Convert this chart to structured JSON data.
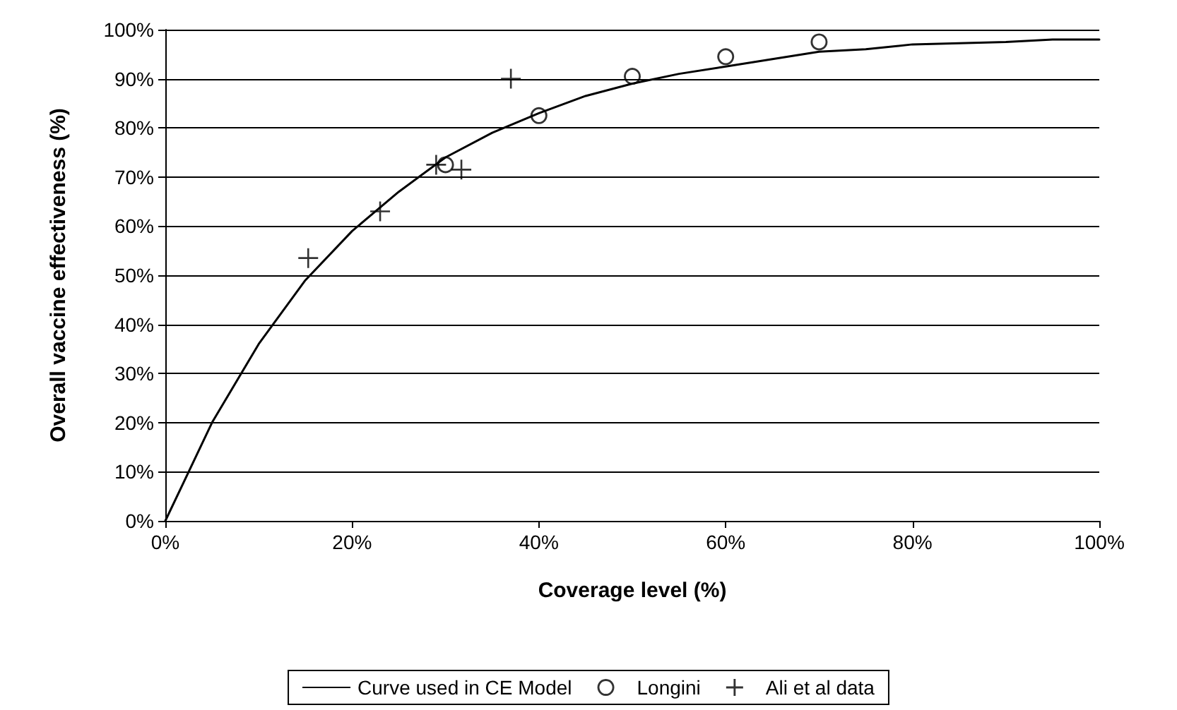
{
  "chart_data": {
    "type": "line",
    "xlabel": "Coverage level (%)",
    "ylabel": "Overall vaccine effectiveness (%)",
    "xlim": [
      0,
      100
    ],
    "xticks": [
      {
        "value": 0,
        "label": "0%"
      },
      {
        "value": 20,
        "label": "20%"
      },
      {
        "value": 40,
        "label": "40%"
      },
      {
        "value": 60,
        "label": "60%"
      },
      {
        "value": 80,
        "label": "80%"
      },
      {
        "value": 100,
        "label": "100%"
      }
    ],
    "ylim": [
      0,
      100
    ],
    "yticks": [
      {
        "value": 0,
        "label": "0%"
      },
      {
        "value": 10,
        "label": "10%"
      },
      {
        "value": 20,
        "label": "20%"
      },
      {
        "value": 30,
        "label": "30%"
      },
      {
        "value": 40,
        "label": "40%"
      },
      {
        "value": 50,
        "label": "50%"
      },
      {
        "value": 60,
        "label": "60%"
      },
      {
        "value": 70,
        "label": "70%"
      },
      {
        "value": 80,
        "label": "80%"
      },
      {
        "value": 90,
        "label": "90%"
      },
      {
        "value": 100,
        "label": "100%"
      }
    ],
    "grid": "y",
    "legend": "bottom",
    "series": [
      {
        "name": "Curve used in CE Model",
        "color": "#000000",
        "marker": "none",
        "x": [
          0,
          5,
          10,
          15,
          20,
          25,
          30,
          35,
          40,
          45,
          50,
          55,
          60,
          65,
          70,
          75,
          80,
          90,
          95,
          100
        ],
        "values": [
          0,
          20,
          36,
          49,
          59,
          67,
          74,
          79,
          83,
          86.5,
          89,
          91,
          92.5,
          94,
          95.5,
          96,
          97,
          97.5,
          98,
          98
        ]
      },
      {
        "name": "Longini",
        "type": "scatter",
        "color": "#000000",
        "marker": "circle",
        "x": [
          30,
          40,
          50,
          60,
          70
        ],
        "values": [
          72.5,
          82.5,
          90.5,
          94.5,
          97.5
        ]
      },
      {
        "name": "Ali et al data",
        "type": "scatter",
        "color": "#000000",
        "marker": "cross",
        "x": [
          15.3,
          23,
          29,
          31.7,
          37
        ],
        "values": [
          53.5,
          63,
          72.5,
          71.5,
          90
        ]
      }
    ]
  }
}
